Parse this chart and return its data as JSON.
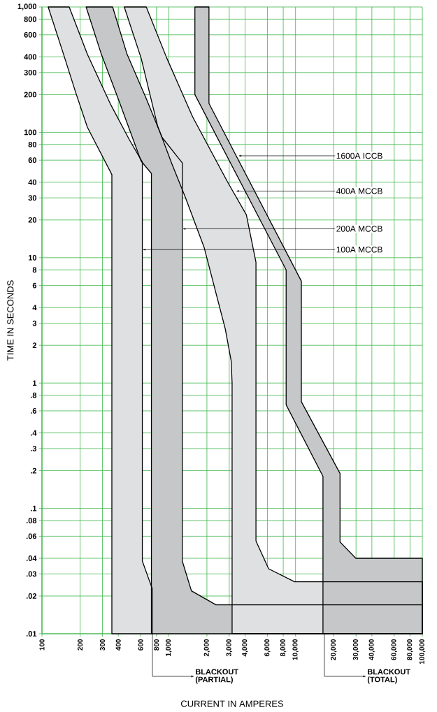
{
  "chart_data": {
    "type": "area",
    "xlabel": "CURRENT IN AMPERES",
    "ylabel": "TIME IN SECONDS",
    "log": "xy",
    "grid": true,
    "xlim": [
      100,
      100000
    ],
    "ylim": [
      0.01,
      1000
    ],
    "xticks": [
      100,
      200,
      300,
      400,
      600,
      800,
      {
        "value": 1000,
        "label": "1,000"
      },
      {
        "value": 2000,
        "label": "2,000"
      },
      {
        "value": 3000,
        "label": "3,000"
      },
      {
        "value": 4000,
        "label": "4,000"
      },
      {
        "value": 6000,
        "label": "6,000"
      },
      {
        "value": 8000,
        "label": "8,000"
      },
      {
        "value": 10000,
        "label": "10,000"
      },
      {
        "value": 20000,
        "label": "20,000"
      },
      {
        "value": 30000,
        "label": "30,000"
      },
      {
        "value": 40000,
        "label": "40,000"
      },
      {
        "value": 60000,
        "label": "60,000"
      },
      {
        "value": 80000,
        "label": "80,000"
      },
      {
        "value": 100000,
        "label": "100,000"
      }
    ],
    "yticks": [
      {
        "value": 1000,
        "label": "1,000"
      },
      800,
      600,
      400,
      300,
      200,
      100,
      80,
      60,
      40,
      30,
      20,
      10,
      8,
      6,
      4,
      3,
      2,
      1,
      {
        "value": 0.8,
        "label": ".8"
      },
      {
        "value": 0.6,
        "label": ".6"
      },
      {
        "value": 0.4,
        "label": ".4"
      },
      {
        "value": 0.3,
        "label": ".3"
      },
      {
        "value": 0.2,
        "label": ".2"
      },
      {
        "value": 0.1,
        "label": ".1"
      },
      {
        "value": 0.08,
        "label": ".08"
      },
      {
        "value": 0.06,
        "label": ".06"
      },
      {
        "value": 0.04,
        "label": ".04"
      },
      {
        "value": 0.03,
        "label": ".03"
      },
      {
        "value": 0.02,
        "label": ".02"
      },
      {
        "value": 0.01,
        "label": ".01"
      }
    ],
    "series": [
      {
        "color": "#dfe0e2",
        "x": [
          112,
          148,
          184,
          228,
          356,
          356,
          740,
          740,
          619,
          619,
          490,
          349,
          228,
          184,
          164
        ],
        "values": [
          1000,
          420,
          210,
          110,
          46,
          0.01,
          0.01,
          0.023,
          0.038,
          58,
          87,
          166,
          420,
          740,
          1000
        ]
      },
      {
        "color": "#c6c7c9",
        "x": [
          223,
          294,
          396,
          605,
          730,
          730,
          100000,
          100000,
          2358,
          1510,
          1279,
          1279,
          887,
          659,
          469,
          361
        ],
        "values": [
          1000,
          420,
          190,
          59,
          47,
          0.01,
          0.01,
          0.017,
          0.017,
          0.022,
          0.038,
          57,
          91,
          190,
          420,
          1000
        ]
      },
      {
        "color": "#dfe0e2",
        "x": [
          446,
          606,
          816,
          1052,
          1358,
          1905,
          2793,
          3108,
          3160,
          3160,
          100000,
          100000,
          9824,
          6132,
          4875,
          4875,
          4093,
          2917,
          1543,
          966,
          665
        ],
        "values": [
          1000,
          390,
          113,
          57,
          30,
          12,
          2.7,
          1.5,
          1.0,
          0.01,
          0.01,
          0.026,
          0.026,
          0.033,
          0.055,
          9.2,
          22,
          40,
          133,
          390,
          1000
        ]
      },
      {
        "color": "#c6c7c9",
        "x": [
          1608,
          1608,
          8432,
          8432,
          16459,
          16459,
          100000,
          100000,
          29880,
          22435,
          22435,
          11117,
          11117,
          2076,
          2076
        ],
        "values": [
          1000,
          200,
          8,
          0.67,
          0.18,
          0.01,
          0.01,
          0.04,
          0.04,
          0.054,
          0.19,
          0.71,
          6.5,
          170,
          1000
        ]
      }
    ],
    "annotations": [
      {
        "text": "1600A ICCB",
        "x": 3531,
        "y": 65
      },
      {
        "text": "400A MCCB",
        "x": 3370,
        "y": 34
      },
      {
        "text": "200A MCCB",
        "x": 1279,
        "y": 17
      },
      {
        "text": "100A MCCB",
        "x": 619,
        "y": 11.6
      },
      "BLACKOUT (PARTIAL)",
      "BLACKOUT (TOTAL)"
    ]
  }
}
